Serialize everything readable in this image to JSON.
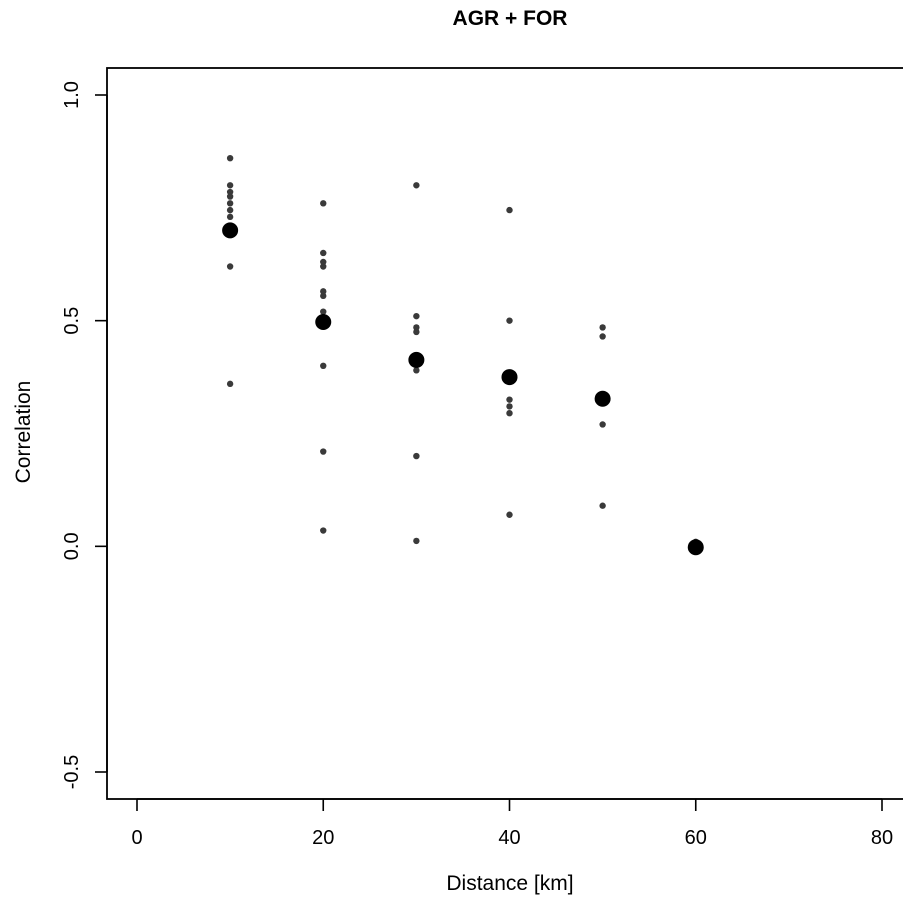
{
  "chart_data": {
    "type": "scatter",
    "title": "AGR + FOR",
    "xlabel": "Distance [km]",
    "ylabel": "Correlation",
    "xlim": [
      -3,
      80
    ],
    "ylim": [
      -0.56,
      1.06
    ],
    "x_ticks": [
      0,
      20,
      40,
      60,
      80
    ],
    "x_tick_labels": [
      "0",
      "20",
      "40",
      "60",
      "80"
    ],
    "y_ticks": [
      -0.5,
      0.0,
      0.5,
      1.0
    ],
    "y_tick_labels": [
      "-0.5",
      "0.0",
      "0.5",
      "1.0"
    ],
    "grid": false,
    "legend": "none",
    "series": [
      {
        "role": "individual",
        "color": "#3a3a3a",
        "points": [
          [
            10,
            0.86
          ],
          [
            10,
            0.8
          ],
          [
            10,
            0.785
          ],
          [
            10,
            0.775
          ],
          [
            10,
            0.76
          ],
          [
            10,
            0.745
          ],
          [
            10,
            0.73
          ],
          [
            10,
            0.62
          ],
          [
            10,
            0.36
          ],
          [
            20,
            0.76
          ],
          [
            20,
            0.65
          ],
          [
            20,
            0.63
          ],
          [
            20,
            0.62
          ],
          [
            20,
            0.565
          ],
          [
            20,
            0.555
          ],
          [
            20,
            0.52
          ],
          [
            20,
            0.4
          ],
          [
            20,
            0.21
          ],
          [
            20,
            0.035
          ],
          [
            30,
            0.8
          ],
          [
            30,
            0.51
          ],
          [
            30,
            0.485
          ],
          [
            30,
            0.475
          ],
          [
            30,
            0.39
          ],
          [
            30,
            0.2
          ],
          [
            30,
            0.012
          ],
          [
            40,
            0.745
          ],
          [
            40,
            0.5
          ],
          [
            40,
            0.325
          ],
          [
            40,
            0.31
          ],
          [
            40,
            0.295
          ],
          [
            40,
            0.07
          ],
          [
            50,
            0.485
          ],
          [
            50,
            0.465
          ],
          [
            50,
            0.27
          ],
          [
            50,
            0.09
          ],
          [
            60,
            0.01
          ],
          [
            60,
            -0.01
          ]
        ]
      },
      {
        "role": "mean",
        "color": "#000000",
        "points": [
          [
            10,
            0.7
          ],
          [
            20,
            0.497
          ],
          [
            30,
            0.413
          ],
          [
            40,
            0.375
          ],
          [
            50,
            0.327
          ],
          [
            60,
            -0.002
          ]
        ]
      }
    ]
  }
}
